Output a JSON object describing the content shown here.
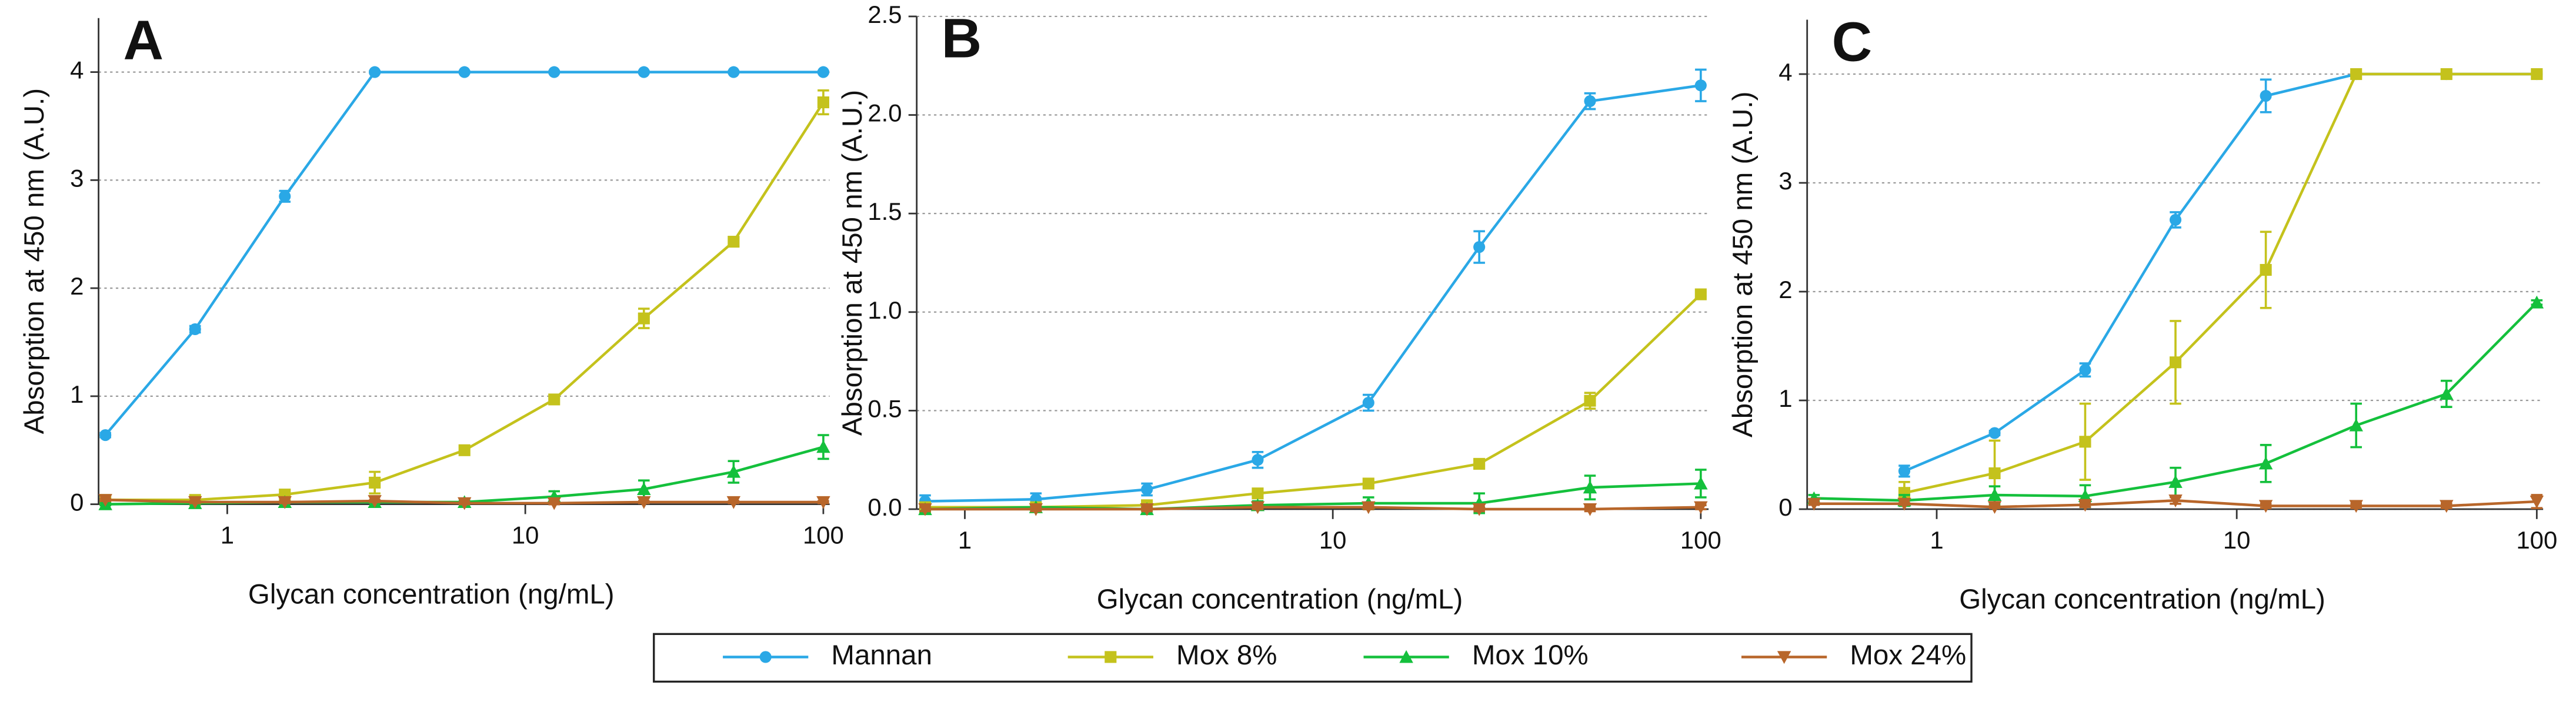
{
  "chart_data": [
    {
      "type": "line",
      "title": "A",
      "log_x": true,
      "grid": true,
      "legend": "bottom",
      "xlabel": "Glycan concentration (ng/mL)",
      "ylabel": "Absorption at 450 nm (A.U.)",
      "x": [
        0.39,
        0.78,
        1.56,
        3.125,
        6.25,
        12.5,
        25,
        50,
        100
      ],
      "xlim": [
        0.37,
        105
      ],
      "xticks": [
        1,
        10,
        100
      ],
      "ylim": [
        0,
        4.5
      ],
      "yticks": [
        0,
        1,
        2,
        3,
        4
      ],
      "series": [
        {
          "name": "Mannan",
          "color": "#2aa8e6",
          "marker": "circle",
          "values": [
            0.64,
            1.62,
            2.85,
            4,
            4,
            4,
            4,
            4,
            4
          ],
          "errors": [
            0.02,
            0.03,
            0.05,
            0.01,
            0.01,
            0.01,
            0.01,
            0.01,
            0.01
          ]
        },
        {
          "name": "Mox 8%",
          "color": "#c4c21c",
          "marker": "square",
          "values": [
            0.04,
            0.04,
            0.09,
            0.2,
            0.5,
            0.97,
            1.72,
            2.43,
            3.72
          ],
          "errors": [
            0.01,
            0.01,
            0.02,
            0.1,
            0.03,
            0.02,
            0.09,
            0.04,
            0.11
          ]
        },
        {
          "name": "Mox 10%",
          "color": "#14c03c",
          "marker": "triangle-up",
          "values": [
            0,
            0.01,
            0.02,
            0.02,
            0.02,
            0.07,
            0.14,
            0.3,
            0.53
          ],
          "errors": [
            0.01,
            0.01,
            0.01,
            0.01,
            0.02,
            0.05,
            0.08,
            0.1,
            0.11
          ]
        },
        {
          "name": "Mox 24%",
          "color": "#b8662a",
          "marker": "triangle-down",
          "values": [
            0.04,
            0.02,
            0.02,
            0.03,
            0.01,
            0.01,
            0.02,
            0.02,
            0.02
          ],
          "errors": [
            0.01,
            0.01,
            0.01,
            0.01,
            0.01,
            0.01,
            0.01,
            0.01,
            0.01
          ]
        }
      ]
    },
    {
      "type": "line",
      "title": "B",
      "log_x": true,
      "grid": true,
      "xlabel": "Glycan concentration (ng/mL)",
      "ylabel": "Absorption at 450 nm (A.U.)",
      "x": [
        0.78,
        1.56,
        3.125,
        6.25,
        12.5,
        25,
        50,
        100
      ],
      "xlim": [
        0.74,
        105
      ],
      "xticks": [
        1,
        10,
        100
      ],
      "ylim": [
        0,
        2.5
      ],
      "yticks": [
        {
          "value": 0,
          "label": "0.0"
        },
        0.5,
        {
          "value": 1,
          "label": "1.0"
        },
        1.5,
        {
          "value": 2,
          "label": "2.0"
        },
        2.5
      ],
      "series": [
        {
          "name": "Mannan",
          "color": "#2aa8e6",
          "marker": "circle",
          "values": [
            0.04,
            0.05,
            0.1,
            0.25,
            0.54,
            1.33,
            2.07,
            2.15
          ],
          "errors": [
            0.03,
            0.03,
            0.03,
            0.04,
            0.04,
            0.08,
            0.04,
            0.08
          ]
        },
        {
          "name": "Mox 8%",
          "color": "#c4c21c",
          "marker": "square",
          "values": [
            0.01,
            0.01,
            0.02,
            0.08,
            0.13,
            0.23,
            0.55,
            1.09
          ],
          "errors": [
            0.01,
            0.01,
            0.01,
            0.01,
            0.01,
            0.02,
            0.04,
            0.01
          ]
        },
        {
          "name": "Mox 10%",
          "color": "#14c03c",
          "marker": "triangle-up",
          "values": [
            0,
            0.01,
            0,
            0.02,
            0.03,
            0.03,
            0.11,
            0.13
          ],
          "errors": [
            0.01,
            0.01,
            0.01,
            0.02,
            0.03,
            0.05,
            0.06,
            0.07
          ]
        },
        {
          "name": "Mox 24%",
          "color": "#b8662a",
          "marker": "triangle-down",
          "values": [
            0,
            0,
            0,
            0.01,
            0.01,
            0,
            0,
            0.01
          ],
          "errors": [
            0.01,
            0.01,
            0.01,
            0.01,
            0.01,
            0.01,
            0.01,
            0.01
          ]
        }
      ]
    },
    {
      "type": "line",
      "title": "C",
      "log_x": true,
      "grid": true,
      "xlabel": "Glycan concentration (ng/mL)",
      "ylabel": "Absorption at 450 nm (A.U.)",
      "x": [
        0.39,
        0.78,
        1.56,
        3.125,
        6.25,
        12.5,
        25,
        50,
        100
      ],
      "xlim": [
        0.37,
        105
      ],
      "xticks": [
        1,
        10,
        100
      ],
      "ylim": [
        0,
        4.5
      ],
      "yticks": [
        0,
        1,
        2,
        3,
        4
      ],
      "series": [
        {
          "name": "Mannan",
          "color": "#2aa8e6",
          "marker": "circle",
          "values": [
            null,
            0.35,
            0.7,
            1.28,
            2.66,
            3.8,
            4,
            4,
            4
          ],
          "errors": [
            null,
            0.05,
            0.02,
            0.06,
            0.07,
            0.15,
            0.02,
            0.02,
            0.02
          ]
        },
        {
          "name": "Mox 8%",
          "color": "#c4c21c",
          "marker": "square",
          "values": [
            null,
            0.15,
            0.33,
            0.62,
            1.35,
            2.2,
            4,
            4,
            4
          ],
          "errors": [
            null,
            0.1,
            0.3,
            0.35,
            0.38,
            0.35,
            0.02,
            0.02,
            0.02
          ]
        },
        {
          "name": "Mox 10%",
          "color": "#14c03c",
          "marker": "triangle-up",
          "values": [
            0.1,
            0.08,
            0.13,
            0.12,
            0.25,
            0.42,
            0.77,
            1.06,
            1.9
          ],
          "errors": [
            0.03,
            0.05,
            0.08,
            0.1,
            0.13,
            0.17,
            0.2,
            0.12,
            0.02
          ]
        },
        {
          "name": "Mox 24%",
          "color": "#b8662a",
          "marker": "triangle-down",
          "values": [
            0.05,
            0.05,
            0.02,
            0.04,
            0.08,
            0.03,
            0.03,
            0.03,
            0.07
          ],
          "errors": [
            0.01,
            0.01,
            0.01,
            0.02,
            0.03,
            0.02,
            0.02,
            0.02,
            0.06
          ]
        }
      ]
    }
  ]
}
